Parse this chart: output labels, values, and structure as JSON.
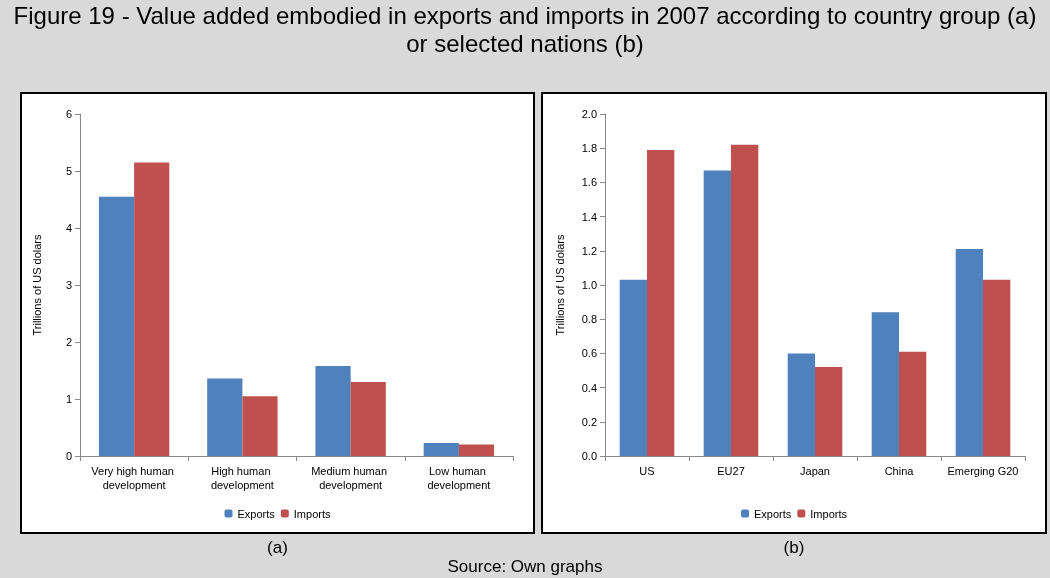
{
  "chart_data": [
    {
      "type": "bar",
      "title": "Figure 19 - Value added embodied in exports and imports in 2007 according to country group (a) or selected nations (b)",
      "ylabel": "Trillions of US dolars",
      "categories": [
        "Very high human development",
        "High human development",
        "Medium human development",
        "Low human development"
      ],
      "series": [
        {
          "name": "Exports",
          "color": "#4f81bd",
          "values": [
            4.55,
            1.36,
            1.58,
            0.23
          ]
        },
        {
          "name": "Imports",
          "color": "#c0504d",
          "values": [
            5.15,
            1.05,
            1.3,
            0.2
          ]
        }
      ],
      "ylim": [
        0,
        6
      ],
      "yticks": [
        0,
        1,
        2,
        3,
        4,
        5,
        6
      ],
      "grid": false,
      "legend": "bottom",
      "annotations": [
        "(a)",
        "Source: Own graphs"
      ]
    },
    {
      "type": "bar",
      "ylabel": "Trillions of US dolars",
      "categories": [
        "US",
        "EU27",
        "Japan",
        "China",
        "Emerging G20"
      ],
      "series": [
        {
          "name": "Exports",
          "color": "#4f81bd",
          "values": [
            1.03,
            1.67,
            0.6,
            0.84,
            1.21
          ]
        },
        {
          "name": "Imports",
          "color": "#c0504d",
          "values": [
            1.79,
            1.82,
            0.52,
            0.61,
            1.03
          ]
        }
      ],
      "ylim": [
        0,
        2
      ],
      "yticks": [
        {
          "value": 0,
          "label": "0.0"
        },
        0.2,
        0.4,
        0.6,
        0.8,
        {
          "value": 1,
          "label": "1.0"
        },
        1.2,
        1.4,
        1.6,
        1.8,
        {
          "value": 2,
          "label": "2.0"
        }
      ],
      "grid": false,
      "legend": "bottom",
      "annotations": [
        "(b)"
      ]
    }
  ]
}
